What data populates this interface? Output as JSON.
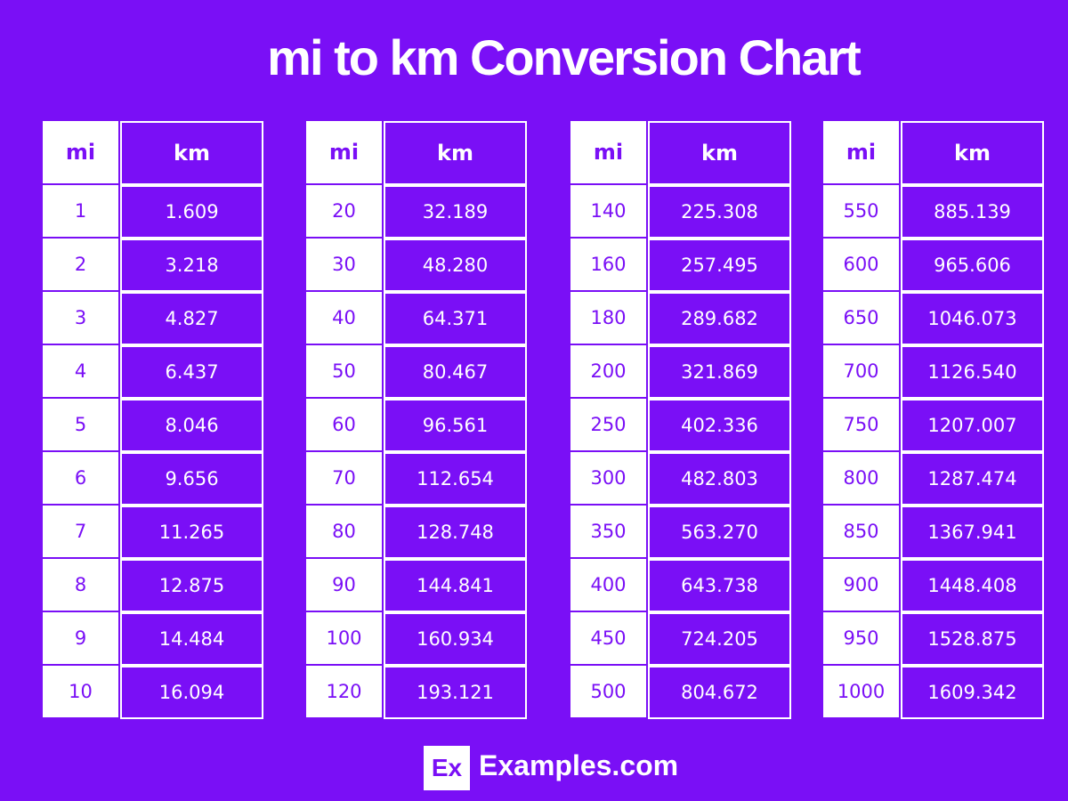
{
  "header": {
    "title": "mi to km Conversion Chart"
  },
  "tables": [
    {
      "header": [
        "mi",
        "km"
      ],
      "rows": [
        [
          "1",
          "1.609"
        ],
        [
          "2",
          "3.218"
        ],
        [
          "3",
          "4.827"
        ],
        [
          "4",
          "6.437"
        ],
        [
          "5",
          "8.046"
        ],
        [
          "6",
          "9.656"
        ],
        [
          "7",
          "11.265"
        ],
        [
          "8",
          "12.875"
        ],
        [
          "9",
          "14.484"
        ],
        [
          "10",
          "16.094"
        ]
      ]
    },
    {
      "header": [
        "mi",
        "km"
      ],
      "rows": [
        [
          "20",
          "32.189"
        ],
        [
          "30",
          "48.280"
        ],
        [
          "40",
          "64.371"
        ],
        [
          "50",
          "80.467"
        ],
        [
          "60",
          "96.561"
        ],
        [
          "70",
          "112.654"
        ],
        [
          "80",
          "128.748"
        ],
        [
          "90",
          "144.841"
        ],
        [
          "100",
          "160.934"
        ],
        [
          "120",
          "193.121"
        ]
      ]
    },
    {
      "header": [
        "mi",
        "km"
      ],
      "rows": [
        [
          "140",
          "225.308"
        ],
        [
          "160",
          "257.495"
        ],
        [
          "180",
          "289.682"
        ],
        [
          "200",
          "321.869"
        ],
        [
          "250",
          "402.336"
        ],
        [
          "300",
          "482.803"
        ],
        [
          "350",
          "563.270"
        ],
        [
          "400",
          "643.738"
        ],
        [
          "450",
          "724.205"
        ],
        [
          "500",
          "804.672"
        ]
      ]
    },
    {
      "header": [
        "mi",
        "km"
      ],
      "rows": [
        [
          "550",
          "885.139"
        ],
        [
          "600",
          "965.606"
        ],
        [
          "650",
          "1046.073"
        ],
        [
          "700",
          "1126.540"
        ],
        [
          "750",
          "1207.007"
        ],
        [
          "800",
          "1287.474"
        ],
        [
          "850",
          "1367.941"
        ],
        [
          "900",
          "1448.408"
        ],
        [
          "950",
          "1528.875"
        ],
        [
          "1000",
          "1609.342"
        ]
      ]
    }
  ],
  "footer": {
    "logo": "Ex",
    "brand": "Examples.com"
  }
}
